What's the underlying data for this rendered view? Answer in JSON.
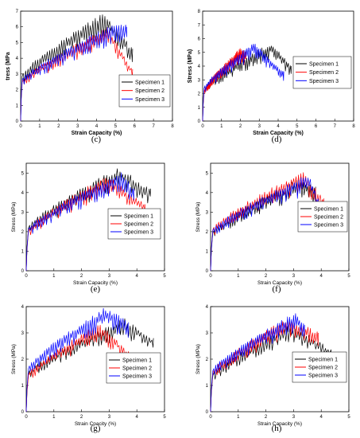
{
  "panel_labels": [
    "(c)",
    "(d)",
    "(e)",
    "(f)",
    "(g)",
    "(h)"
  ],
  "chart_data": [
    {
      "panel": "(c)",
      "type": "line",
      "xlabel": "Strain Capacity (%)",
      "ylabel": "tress (MPa",
      "bold_titles": true,
      "xlim": [
        0,
        8
      ],
      "ylim": [
        0,
        7
      ],
      "xticks": [
        0,
        1,
        2,
        3,
        4,
        5,
        6,
        7,
        8
      ],
      "yticks": [
        0,
        1,
        2,
        3,
        4,
        5,
        6,
        7
      ],
      "series": [
        {
          "name": "Specimen 1",
          "color": "#000000",
          "peak_x": 4.5,
          "peak_y": 6.8,
          "end_x": 5.9,
          "end_y": 4.6
        },
        {
          "name": "Specimen 2",
          "color": "#ff0000",
          "peak_x": 4.7,
          "peak_y": 5.9,
          "end_x": 5.9,
          "end_y": 3.3
        },
        {
          "name": "Specimen 3",
          "color": "#0000ff",
          "peak_x": 5.2,
          "peak_y": 6.2,
          "end_x": 5.6,
          "end_y": 6.0
        }
      ]
    },
    {
      "panel": "(d)",
      "type": "line",
      "xlabel": "Strain Capacity (%)",
      "ylabel": "Stress (MPa)",
      "bold_titles": true,
      "xlim": [
        0,
        8
      ],
      "ylim": [
        0,
        8
      ],
      "xticks": [
        0,
        1,
        2,
        3,
        4,
        5,
        6,
        7,
        8
      ],
      "yticks": [
        0,
        1,
        2,
        3,
        4,
        5,
        6,
        7,
        8
      ],
      "series": [
        {
          "name": "Specimen 1",
          "color": "#000000",
          "peak_x": 3.7,
          "peak_y": 5.6,
          "end_x": 4.7,
          "end_y": 4.0
        },
        {
          "name": "Specimen 2",
          "color": "#ff0000",
          "peak_x": 2.0,
          "peak_y": 5.2,
          "end_x": 2.3,
          "end_y": 5.0
        },
        {
          "name": "Specimen 3",
          "color": "#0000ff",
          "peak_x": 2.8,
          "peak_y": 5.7,
          "end_x": 4.3,
          "end_y": 3.6
        }
      ]
    },
    {
      "panel": "(e)",
      "type": "line",
      "xlabel": "Strain Capacity (%)",
      "ylabel": "Stress (MPa)",
      "bold_titles": false,
      "xlim": [
        0,
        5
      ],
      "ylim": [
        0,
        5.5
      ],
      "xticks": [
        0,
        1,
        2,
        3,
        4,
        5
      ],
      "yticks": [
        0,
        1,
        2,
        3,
        4,
        5
      ],
      "series": [
        {
          "name": "Specimen 1",
          "color": "#000000",
          "peak_x": 3.4,
          "peak_y": 5.2,
          "end_x": 4.5,
          "end_y": 4.2
        },
        {
          "name": "Specimen 2",
          "color": "#ff0000",
          "peak_x": 3.0,
          "peak_y": 4.8,
          "end_x": 4.3,
          "end_y": 3.4
        },
        {
          "name": "Specimen 3",
          "color": "#0000ff",
          "peak_x": 3.5,
          "peak_y": 5.0,
          "end_x": 3.9,
          "end_y": 4.2
        }
      ]
    },
    {
      "panel": "(f)",
      "type": "line",
      "xlabel": "Strain Capacity (%)",
      "ylabel": "Stress (MPa)",
      "bold_titles": false,
      "xlim": [
        0,
        5
      ],
      "ylim": [
        0,
        5.5
      ],
      "xticks": [
        0,
        1,
        2,
        3,
        4,
        5
      ],
      "yticks": [
        0,
        1,
        2,
        3,
        4,
        5
      ],
      "series": [
        {
          "name": "Specimen 1",
          "color": "#000000",
          "peak_x": 3.2,
          "peak_y": 4.6,
          "end_x": 3.8,
          "end_y": 4.3
        },
        {
          "name": "Specimen 2",
          "color": "#ff0000",
          "peak_x": 3.4,
          "peak_y": 5.0,
          "end_x": 4.1,
          "end_y": 3.7
        },
        {
          "name": "Specimen 3",
          "color": "#0000ff",
          "peak_x": 3.6,
          "peak_y": 4.9,
          "end_x": 3.9,
          "end_y": 3.7
        }
      ]
    },
    {
      "panel": "(g)",
      "type": "line",
      "xlabel": "Strain Cpacity (%)",
      "ylabel": "Stress (MPa)",
      "bold_titles": false,
      "xlim": [
        0,
        5
      ],
      "ylim": [
        0,
        4
      ],
      "xticks": [
        0,
        1,
        2,
        3,
        4,
        5
      ],
      "yticks": [
        0,
        1,
        2,
        3,
        4
      ],
      "series": [
        {
          "name": "Specimen 1",
          "color": "#000000",
          "peak_x": 3.6,
          "peak_y": 3.5,
          "end_x": 4.6,
          "end_y": 2.8
        },
        {
          "name": "Specimen 2",
          "color": "#ff0000",
          "peak_x": 2.7,
          "peak_y": 3.3,
          "end_x": 4.0,
          "end_y": 2.0
        },
        {
          "name": "Specimen 3",
          "color": "#0000ff",
          "peak_x": 2.9,
          "peak_y": 3.9,
          "end_x": 3.7,
          "end_y": 3.4
        }
      ]
    },
    {
      "panel": "(h)",
      "type": "line",
      "xlabel": "Strain Capacity (%)",
      "ylabel": "Stress (MPa)",
      "bold_titles": false,
      "xlim": [
        0,
        5
      ],
      "ylim": [
        0,
        4
      ],
      "xticks": [
        0,
        1,
        2,
        3,
        4,
        5
      ],
      "yticks": [
        0,
        1,
        2,
        3,
        4
      ],
      "series": [
        {
          "name": "Specimen 1",
          "color": "#000000",
          "peak_x": 3.0,
          "peak_y": 3.3,
          "end_x": 4.6,
          "end_y": 2.2
        },
        {
          "name": "Specimen 2",
          "color": "#ff0000",
          "peak_x": 2.8,
          "peak_y": 3.5,
          "end_x": 3.9,
          "end_y": 3.0
        },
        {
          "name": "Specimen 3",
          "color": "#0000ff",
          "peak_x": 3.1,
          "peak_y": 3.7,
          "end_x": 3.4,
          "end_y": 3.3
        }
      ]
    }
  ]
}
